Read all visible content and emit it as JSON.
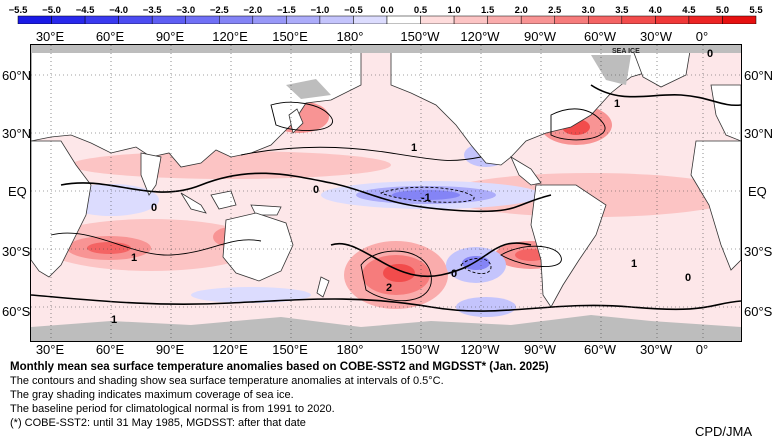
{
  "colorbar": {
    "tick_labels": [
      "−5.5",
      "−5.0",
      "−4.5",
      "−4.0",
      "−3.5",
      "−3.0",
      "−2.5",
      "−2.0",
      "−1.5",
      "−1.0",
      "−0.5",
      "0.0",
      "0.5",
      "1.0",
      "1.5",
      "2.0",
      "2.5",
      "3.0",
      "3.5",
      "4.0",
      "4.5",
      "5.0",
      "5.5"
    ],
    "colors": [
      "#1a1ae6",
      "#2828ec",
      "#3a3af0",
      "#4c4cf2",
      "#5e5ef4",
      "#7070f6",
      "#8484f6",
      "#9898f8",
      "#acacfa",
      "#c4c4fc",
      "#dcdcfe",
      "#ffffff",
      "#fedcdc",
      "#fcc4c4",
      "#faacac",
      "#f89494",
      "#f67c7c",
      "#f46464",
      "#f24c4c",
      "#f03838",
      "#ec2424",
      "#e61010"
    ]
  },
  "longitude_labels": [
    "30°E",
    "60°E",
    "90°E",
    "120°E",
    "150°E",
    "180°",
    "150°W",
    "120°W",
    "90°W",
    "60°W",
    "30°W",
    "0°"
  ],
  "latitude_labels": [
    "60°N",
    "30°N",
    "EQ",
    "30°S",
    "60°S"
  ],
  "sea_ice_label": "SEA ICE",
  "contour_labels": [
    "0",
    "1",
    "-1",
    "0",
    "1",
    "2",
    "1",
    "1",
    "0",
    "0",
    "1",
    "0"
  ],
  "caption": {
    "title": "Monthly mean sea surface temperature anomalies based on COBE-SST2 and MGDSST* (Jan. 2025)",
    "line1": "The contours and shading show sea surface temperature anomalies at intervals of 0.5°C.",
    "line2": "The gray shading indicates maximum coverage of sea ice.",
    "line3": "The baseline period for climatological normal is from 1991 to 2020.",
    "line4": "(*) COBE-SST2: until 31 May 1985, MGDSST: after that date"
  },
  "credit": "CPD/JMA"
}
